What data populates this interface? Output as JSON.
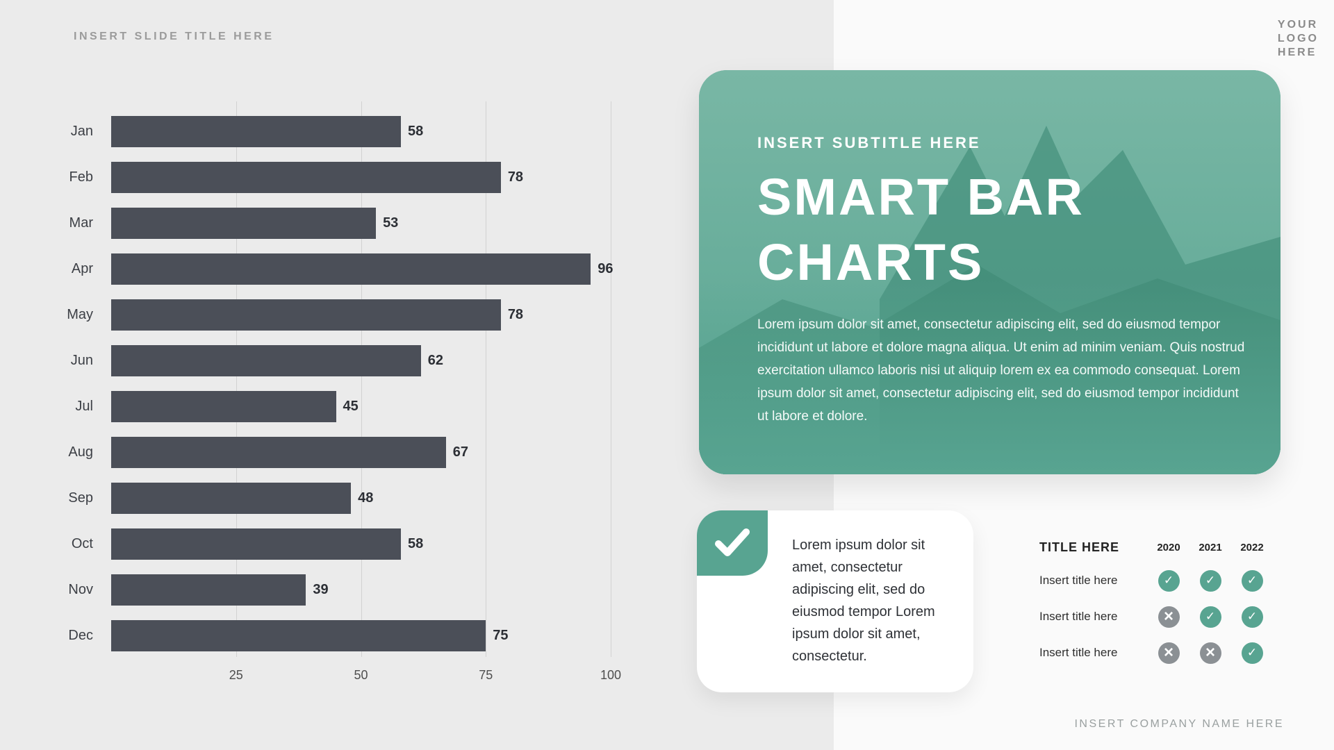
{
  "slide": {
    "title": "INSERT SLIDE TITLE HERE",
    "logo_lines": [
      "YOUR",
      "LOGO",
      "HERE"
    ],
    "company": "INSERT COMPANY NAME HERE"
  },
  "chart_data": {
    "type": "bar",
    "orientation": "horizontal",
    "categories": [
      "Jan",
      "Feb",
      "Mar",
      "Apr",
      "May",
      "Jun",
      "Jul",
      "Aug",
      "Sep",
      "Oct",
      "Nov",
      "Dec"
    ],
    "values": [
      58,
      78,
      53,
      96,
      78,
      62,
      45,
      67,
      48,
      58,
      39,
      75
    ],
    "xlim": [
      0,
      100
    ],
    "xticks": [
      25,
      50,
      75,
      100
    ],
    "bar_color": "#4b4f58",
    "grid": true,
    "title": "",
    "xlabel": "",
    "ylabel": ""
  },
  "feature_card": {
    "subtitle": "INSERT SUBTITLE HERE",
    "title": "SMART BAR CHARTS",
    "body": "Lorem ipsum dolor sit amet, consectetur adipiscing elit, sed do eiusmod tempor incididunt ut labore et dolore magna aliqua. Ut enim ad minim veniam. Quis nostrud exercitation ullamco laboris nisi ut aliquip lorem ex ea commodo consequat. Lorem ipsum dolor sit amet, consectetur adipiscing elit, sed do eiusmod tempor incididunt ut labore et dolore.",
    "accent_color": "#58a491"
  },
  "note_card": {
    "text": "Lorem ipsum dolor sit amet, consectetur adipiscing elit, sed do eiusmod tempor Lorem ipsum dolor sit amet, consectetur."
  },
  "matrix": {
    "title": "TITLE HERE",
    "columns": [
      "2020",
      "2021",
      "2022"
    ],
    "rows": [
      {
        "label": "Insert title here",
        "marks": [
          "check",
          "check",
          "check"
        ]
      },
      {
        "label": "Insert title here",
        "marks": [
          "cross",
          "check",
          "check"
        ]
      },
      {
        "label": "Insert title here",
        "marks": [
          "cross",
          "cross",
          "check"
        ]
      }
    ],
    "check_color": "#58a491",
    "cross_color": "#8b9094"
  }
}
